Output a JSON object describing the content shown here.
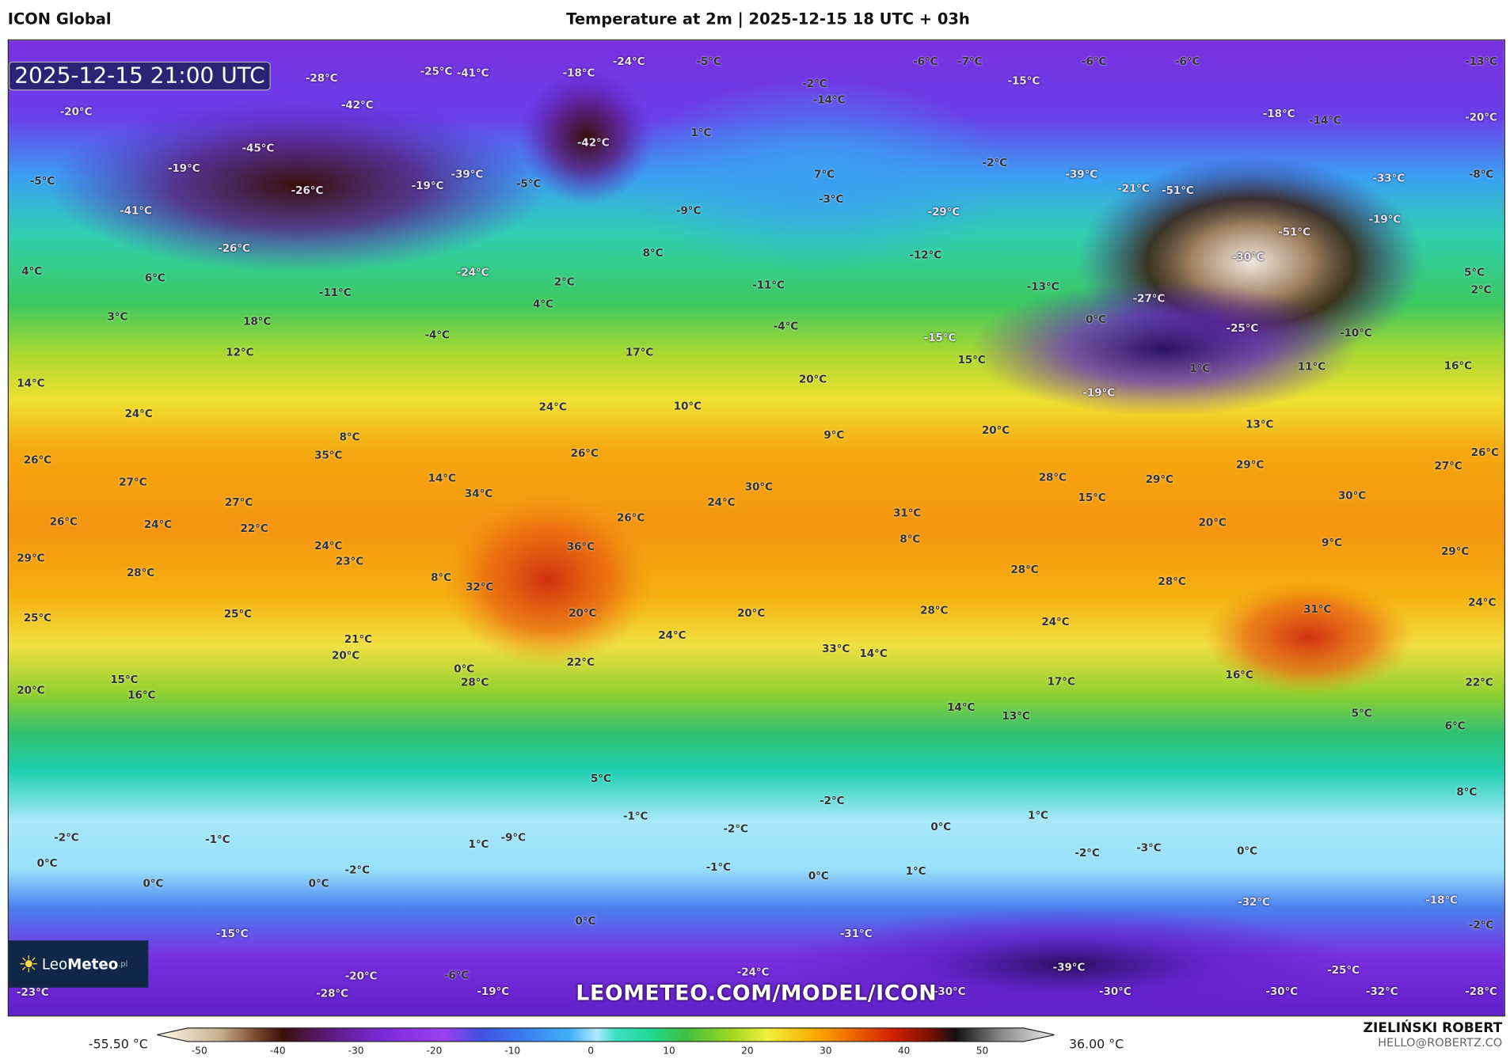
{
  "header": {
    "left_title": "ICON Global",
    "center_title": "Temperature at 2m | 2025-12-15 18 UTC + 03h"
  },
  "map": {
    "valid_time": "2025-12-15 21:00 UTC",
    "watermark_url": "LEOMETEO.COM/MODEL/ICON",
    "logo": {
      "text_leo": "Leo",
      "text_meteo": "Meteo",
      "suffix": ".pl",
      "icon": "sun-icon"
    },
    "labels": [
      "-20°C",
      "-28°C",
      "-25°C",
      "-41°C",
      "-18°C",
      "-24°C",
      "-5°C",
      "-6°C",
      "-7°C",
      "-6°C",
      "-6°C",
      "-13°C",
      "-2°C",
      "-14°C",
      "-15°C",
      "-42°C",
      "-45°C",
      "-42°C",
      "1°C",
      "-18°C",
      "-14°C",
      "-20°C",
      "-5°C",
      "-19°C",
      "-26°C",
      "-19°C",
      "-39°C",
      "-5°C",
      "7°C",
      "-3°C",
      "-2°C",
      "-39°C",
      "-21°C",
      "-51°C",
      "-33°C",
      "-8°C",
      "-41°C",
      "-9°C",
      "-29°C",
      "-51°C",
      "-19°C",
      "-26°C",
      "-12°C",
      "-30°C",
      "4°C",
      "6°C",
      "-24°C",
      "8°C",
      "2°C",
      "-11°C",
      "-11°C",
      "-13°C",
      "-27°C",
      "5°C",
      "2°C",
      "3°C",
      "4°C",
      "0°C",
      "18°C",
      "-4°C",
      "-4°C",
      "-25°C",
      "-10°C",
      "12°C",
      "17°C",
      "-15°C",
      "15°C",
      "1°C",
      "11°C",
      "16°C",
      "14°C",
      "20°C",
      "-19°C",
      "24°C",
      "24°C",
      "10°C",
      "8°C",
      "35°C",
      "9°C",
      "20°C",
      "13°C",
      "26°C",
      "26°C",
      "27°C",
      "26°C",
      "27°C",
      "14°C",
      "34°C",
      "30°C",
      "28°C",
      "29°C",
      "29°C",
      "15°C",
      "30°C",
      "27°C",
      "24°C",
      "31°C",
      "26°C",
      "24°C",
      "22°C",
      "26°C",
      "20°C",
      "8°C",
      "24°C",
      "23°C",
      "36°C",
      "9°C",
      "29°C",
      "29°C",
      "28°C",
      "8°C",
      "32°C",
      "28°C",
      "28°C",
      "25°C",
      "25°C",
      "20°C",
      "20°C",
      "28°C",
      "31°C",
      "24°C",
      "24°C",
      "24°C",
      "21°C",
      "20°C",
      "33°C",
      "14°C",
      "22°C",
      "0°C",
      "28°C",
      "16°C",
      "15°C",
      "16°C",
      "20°C",
      "17°C",
      "22°C",
      "14°C",
      "13°C",
      "5°C",
      "6°C",
      "5°C",
      "8°C",
      "-2°C",
      "-1°C",
      "1°C",
      "-2°C",
      "-1°C",
      "-2°C",
      "0°C",
      "1°C",
      "-9°C",
      "-3°C",
      "-2°C",
      "0°C",
      "0°C",
      "-1°C",
      "1°C",
      "0°C",
      "0°C",
      "-2°C",
      "0°C",
      "-32°C",
      "-18°C",
      "0°C",
      "-15°C",
      "-31°C",
      "-2°C",
      "-24°C",
      "-39°C",
      "-25°C",
      "-6°C",
      "-20°C",
      "-23°C",
      "-28°C",
      "-19°C",
      "-30°C",
      "-30°C",
      "-30°C",
      "-32°C",
      "-28°C"
    ]
  },
  "colorbar": {
    "min_label": "-55.50 °C",
    "max_label": "36.00 °C",
    "ticks": [
      "-50",
      "-40",
      "-30",
      "-20",
      "-10",
      "0",
      "10",
      "20",
      "30",
      "40",
      "50"
    ],
    "range": [
      -55,
      55
    ]
  },
  "author": {
    "name": "ZIELIŃSKI ROBERT",
    "email": "HELLO@ROBERTZ.CO"
  }
}
